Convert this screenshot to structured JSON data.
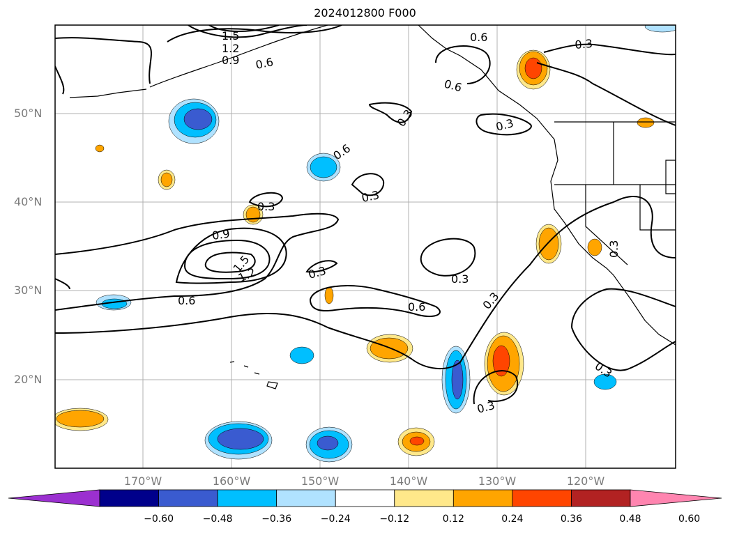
{
  "title": "2024012800 F000",
  "lat_labels": [
    "50°N",
    "40°N",
    "30°N",
    "20°N"
  ],
  "lon_labels": [
    "170°W",
    "160°W",
    "150°W",
    "140°W",
    "130°W",
    "120°W"
  ],
  "colorbar": {
    "ticks": [
      "−0.60",
      "−0.48",
      "−0.36",
      "−0.24",
      "−0.12",
      "0.12",
      "0.24",
      "0.36",
      "0.48",
      "0.60"
    ],
    "colors": [
      "#9b30d0",
      "#00008b",
      "#3a5bd0",
      "#00bfff",
      "#b0e2ff",
      "#ffffff",
      "#ffe88a",
      "#ffa500",
      "#ff4500",
      "#b22222",
      "#ff85b0"
    ]
  },
  "contour_labels": [
    "1.5",
    "1.2",
    "0.9",
    "0.6",
    "0.6",
    "0.6",
    "0.3",
    "0.3",
    "0.6",
    "0.3",
    "0.3",
    "0.9",
    "1.5",
    "1.2",
    "0.3",
    "0.6",
    "0.3",
    "0.6",
    "0.3",
    "0.3",
    "0.3",
    "0.3",
    "0.3"
  ]
}
